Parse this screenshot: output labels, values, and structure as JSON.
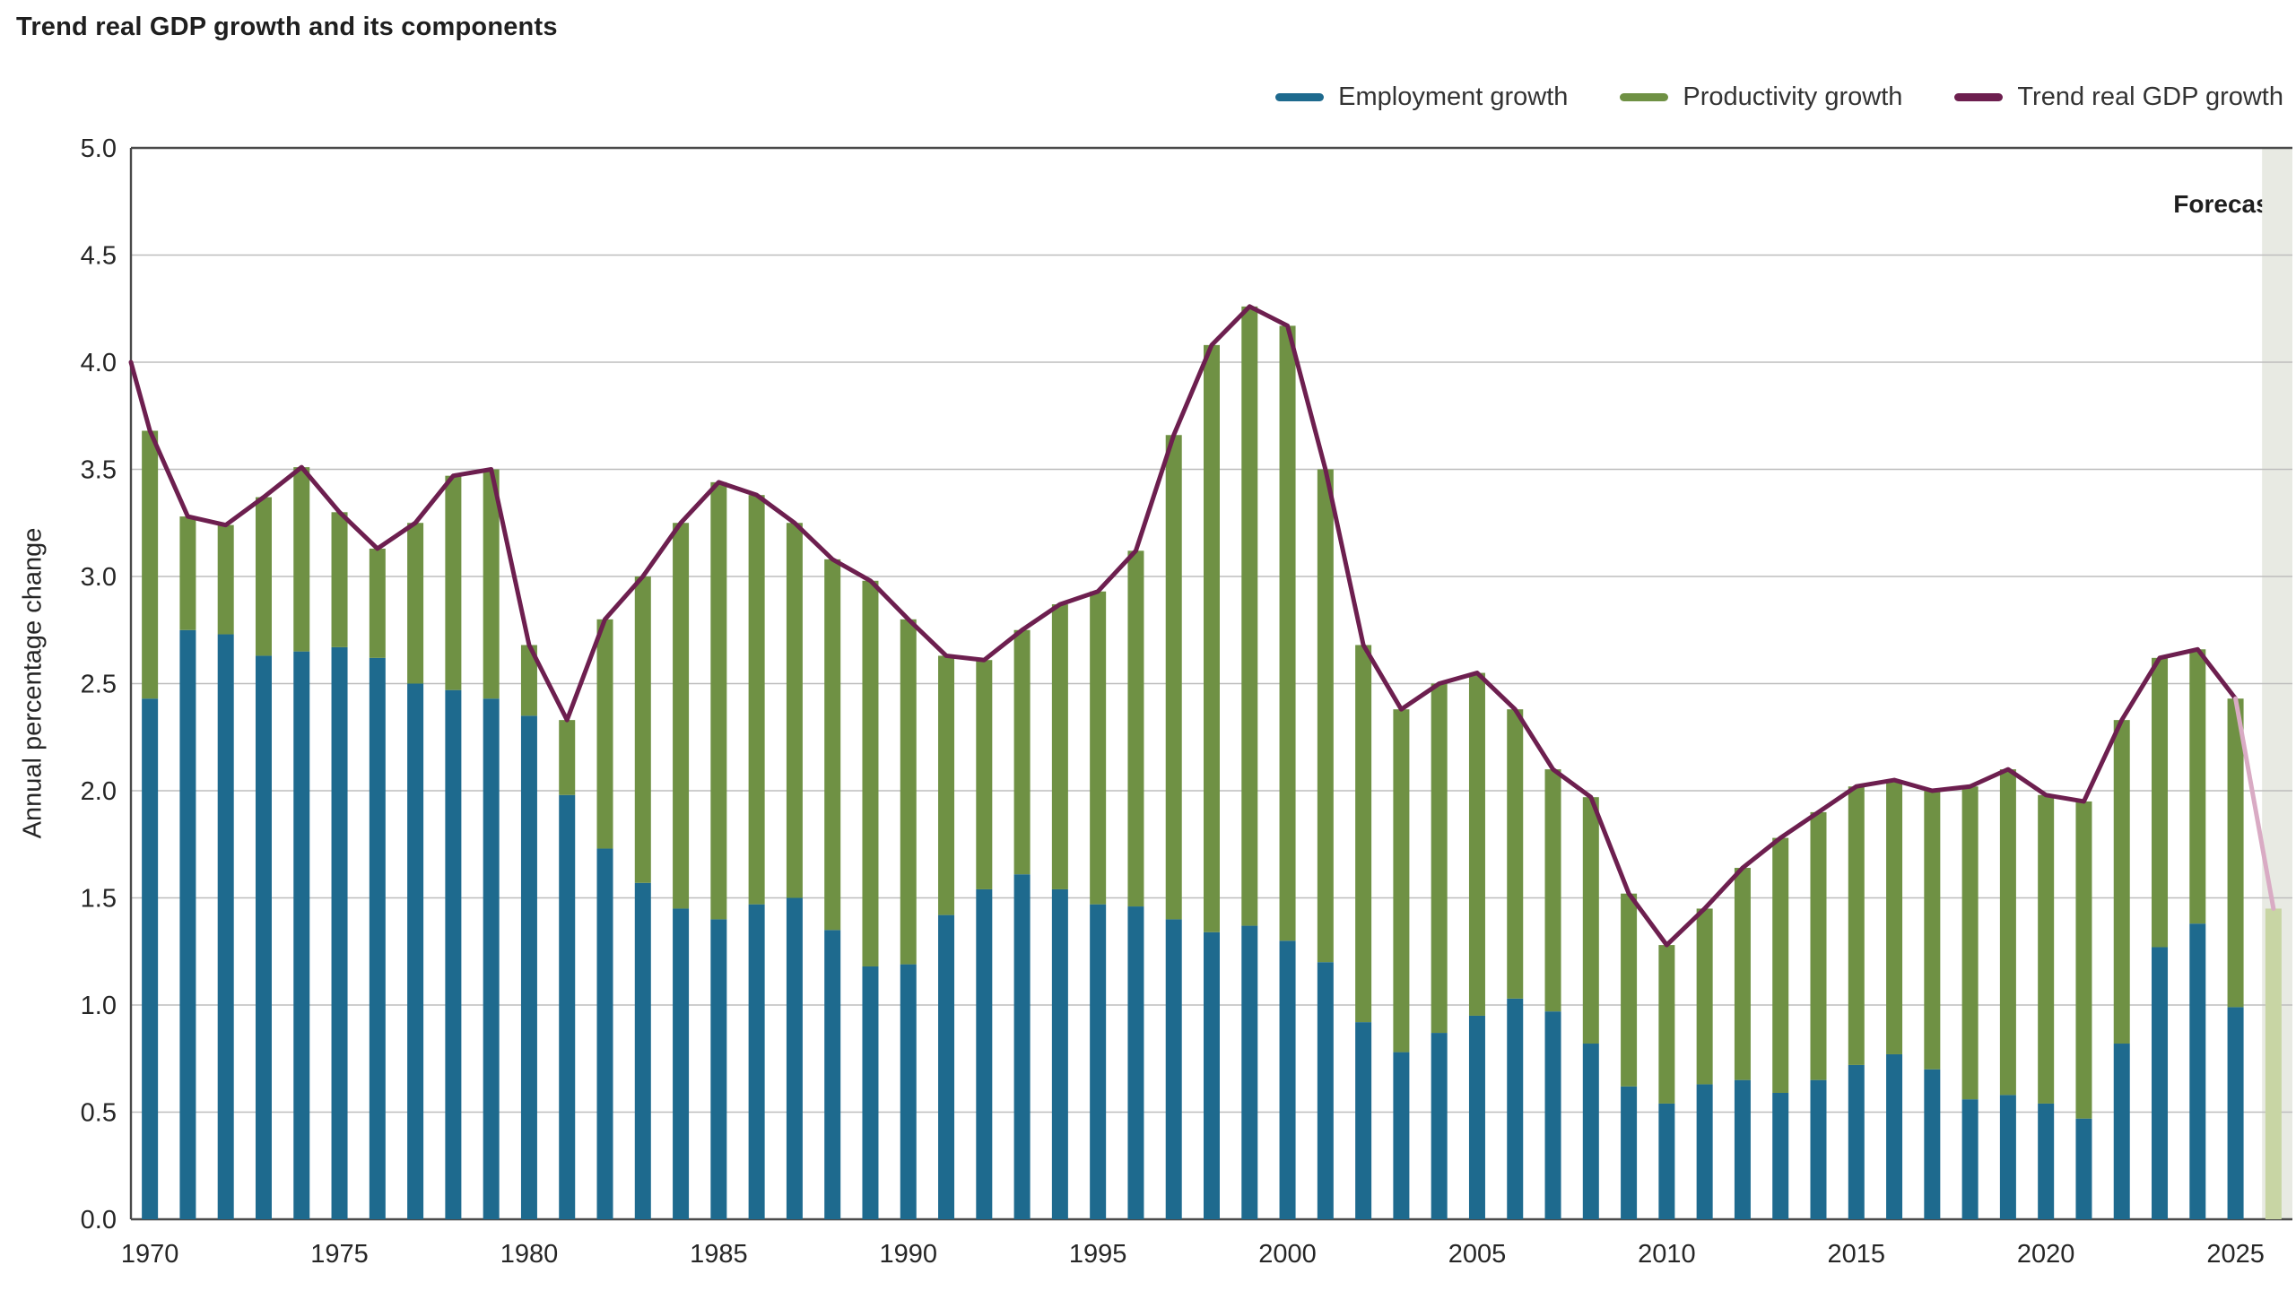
{
  "title": "Trend real GDP growth and its components",
  "legend": {
    "employment": "Employment growth",
    "productivity": "Productivity growth",
    "trend": "Trend real GDP growth"
  },
  "forecast_label": "Forecast",
  "ylabel": "Annual percentage change",
  "colors": {
    "employment": "#1e6a8e",
    "productivity": "#6f9144",
    "trend_line": "#6d1f4f",
    "forecast_band": "#e8eae3",
    "forecast_bar": "#c8d5a4",
    "forecast_line": "#d9abc4",
    "grid": "#bdbdbd",
    "axis": "#4a4a4a",
    "text": "#262626"
  },
  "chart_data": {
    "type": "bar",
    "subtype": "stacked-bars-with-line",
    "title": "Trend real GDP growth and its components",
    "xlabel": "",
    "ylabel": "Annual percentage change",
    "ylim": [
      0,
      5
    ],
    "grid": true,
    "legend_position": "top-right",
    "year_start": 1970,
    "year_end": 2025,
    "x_ticks": [
      1970,
      1975,
      1980,
      1985,
      1990,
      1995,
      2000,
      2005,
      2010,
      2015,
      2020,
      2025
    ],
    "y_ticks": [
      "0.0",
      "0.5",
      "1.0",
      "1.5",
      "2.0",
      "2.5",
      "3.0",
      "3.5",
      "4.0",
      "4.5",
      "5.0"
    ],
    "series": [
      {
        "name": "Employment growth",
        "values": [
          2.43,
          2.75,
          2.73,
          2.63,
          2.65,
          2.67,
          2.62,
          2.5,
          2.47,
          2.43,
          2.35,
          1.98,
          1.73,
          1.57,
          1.45,
          1.4,
          1.47,
          1.5,
          1.35,
          1.18,
          1.19,
          1.42,
          1.54,
          1.61,
          1.54,
          1.47,
          1.46,
          1.4,
          1.34,
          1.37,
          1.3,
          1.2,
          0.92,
          0.78,
          0.87,
          0.95,
          1.03,
          0.97,
          0.82,
          0.62,
          0.54,
          0.63,
          0.65,
          0.59,
          0.65,
          0.72,
          0.77,
          0.7,
          0.56,
          0.58,
          0.54,
          0.47,
          0.82,
          1.27,
          1.38,
          0.99
        ]
      },
      {
        "name": "Productivity growth",
        "values": [
          1.25,
          0.53,
          0.51,
          0.74,
          0.86,
          0.63,
          0.51,
          0.75,
          1.0,
          1.07,
          0.33,
          0.35,
          1.07,
          1.43,
          1.8,
          2.04,
          1.91,
          1.75,
          1.73,
          1.8,
          1.61,
          1.21,
          1.07,
          1.14,
          1.33,
          1.46,
          1.66,
          2.26,
          2.74,
          2.89,
          2.87,
          2.3,
          1.76,
          1.6,
          1.63,
          1.6,
          1.35,
          1.13,
          1.15,
          0.9,
          0.74,
          0.82,
          0.99,
          1.19,
          1.25,
          1.3,
          1.28,
          1.3,
          1.46,
          1.52,
          1.44,
          1.48,
          1.51,
          1.35,
          1.28,
          1.44
        ]
      }
    ],
    "trend_line": {
      "name": "Trend real GDP growth",
      "lead_value": 4.0,
      "values": [
        3.68,
        3.28,
        3.24,
        3.37,
        3.51,
        3.3,
        3.13,
        3.25,
        3.47,
        3.5,
        2.68,
        2.33,
        2.8,
        3.0,
        3.25,
        3.44,
        3.38,
        3.25,
        3.08,
        2.98,
        2.8,
        2.63,
        2.61,
        2.75,
        2.87,
        2.93,
        3.12,
        3.66,
        4.08,
        4.26,
        4.17,
        3.5,
        2.68,
        2.38,
        2.5,
        2.55,
        2.38,
        2.1,
        1.97,
        1.52,
        1.28,
        1.45,
        1.64,
        1.78,
        1.9,
        2.02,
        2.05,
        2.0,
        2.02,
        2.1,
        1.98,
        1.95,
        2.33,
        2.62,
        2.66,
        2.43
      ]
    },
    "forecast": {
      "year": 2026,
      "total": 1.45,
      "label": "Forecast"
    }
  }
}
